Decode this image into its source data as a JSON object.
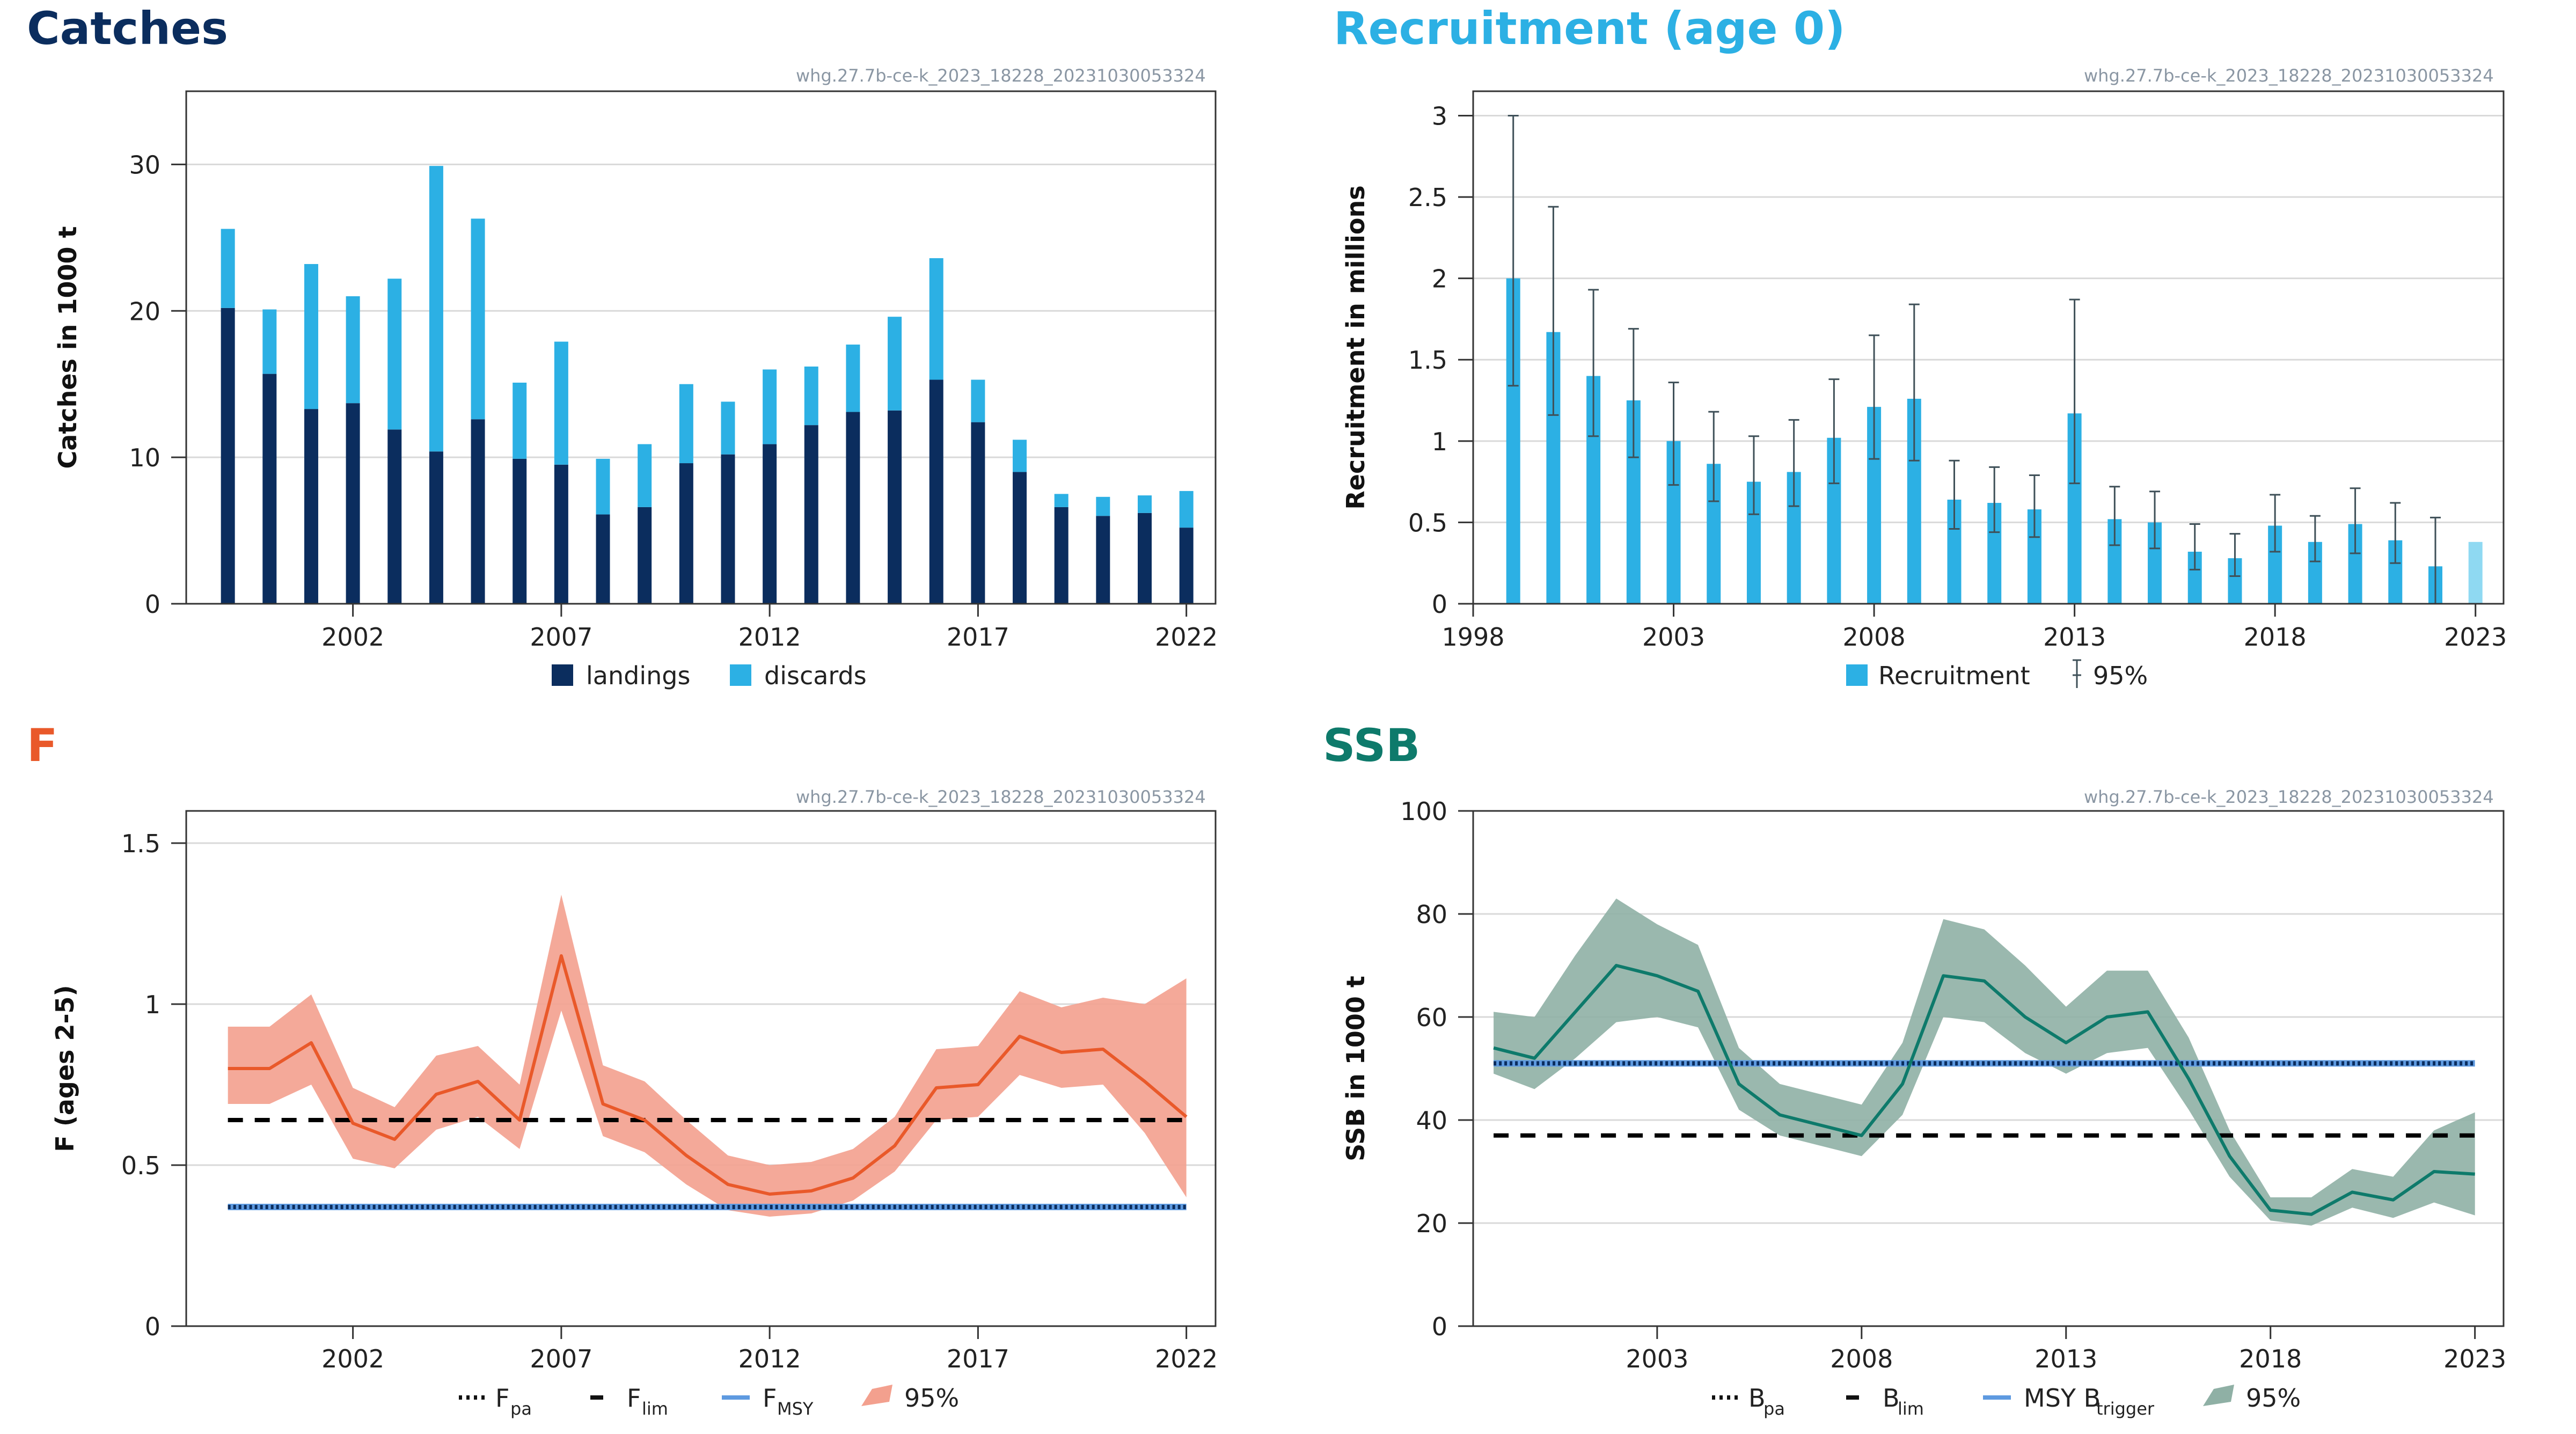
{
  "colors": {
    "landings": "#0b2d5e",
    "discards": "#2cb0e4",
    "recruitment": "#2cb0e4",
    "recruitment_last": "#8fd9f2",
    "error_bars": "#3f5058",
    "f_line": "#e9592a",
    "f_band": "#f3a08e",
    "ssb_line": "#0e7a6b",
    "ssb_band": "#8fb0a5",
    "reference_dashed": "#000000",
    "msy_line": "#5e9ae0",
    "msy_dots": "#0b2d5e",
    "grid": "#d9d9d9",
    "frame": "#333333",
    "catches_title": "#0b2d5e",
    "recruitment_title": "#2cb0e4",
    "f_title": "#e9592a",
    "ssb_title": "#0e7a6b",
    "id_text": "#8a96a3"
  },
  "panels": {
    "catches": {
      "title": "Catches",
      "id": "whg.27.7b-ce-k_2023_18228_20231030053324"
    },
    "recruitment": {
      "title": "Recruitment (age 0)",
      "id": "whg.27.7b-ce-k_2023_18228_20231030053324"
    },
    "f": {
      "title": "F",
      "id": "whg.27.7b-ce-k_2023_18228_20231030053324"
    },
    "ssb": {
      "title": "SSB",
      "id": "whg.27.7b-ce-k_2023_18228_20231030053324"
    }
  },
  "chart_data": [
    {
      "panel": "catches",
      "type": "bar",
      "stacked": true,
      "title": "Catches",
      "ylabel": "Catches in 1000 t",
      "xlabel": "",
      "ylim": [
        0,
        35
      ],
      "yticks": [
        0,
        10,
        20,
        30
      ],
      "xlim": [
        1998,
        2022.7
      ],
      "xticks": [
        2002,
        2007,
        2012,
        2017,
        2022
      ],
      "grid": true,
      "legend_position": "bottom",
      "x": [
        1999,
        2000,
        2001,
        2002,
        2003,
        2004,
        2005,
        2006,
        2007,
        2008,
        2009,
        2010,
        2011,
        2012,
        2013,
        2014,
        2015,
        2016,
        2017,
        2018,
        2019,
        2020,
        2021,
        2022
      ],
      "series": [
        {
          "name": "landings",
          "values": [
            20.2,
            15.7,
            13.3,
            13.7,
            11.9,
            10.4,
            12.6,
            9.9,
            9.5,
            6.1,
            6.6,
            9.6,
            10.2,
            10.9,
            12.2,
            13.1,
            13.2,
            15.3,
            12.4,
            9.0,
            6.6,
            6.0,
            6.2,
            5.2
          ]
        },
        {
          "name": "discards",
          "values": [
            5.4,
            4.4,
            9.9,
            7.3,
            10.3,
            19.5,
            13.7,
            5.2,
            8.4,
            3.8,
            4.3,
            5.4,
            3.6,
            5.1,
            4.0,
            4.6,
            6.4,
            8.3,
            2.9,
            2.2,
            0.9,
            1.3,
            1.2,
            2.5
          ]
        }
      ]
    },
    {
      "panel": "recruitment",
      "type": "bar",
      "title": "Recruitment (age 0)",
      "ylabel": "Recruitment in millions",
      "xlabel": "",
      "ylim": [
        0,
        3.15
      ],
      "yticks": [
        0,
        0.5,
        1,
        1.5,
        2,
        2.5,
        3
      ],
      "ytick_labels": [
        "0",
        "0.5",
        "1",
        "1.5",
        "2",
        "2.5",
        "3"
      ],
      "xlim": [
        1998,
        2023.7
      ],
      "xticks": [
        1998,
        2003,
        2008,
        2013,
        2018,
        2023
      ],
      "grid": true,
      "legend_position": "bottom",
      "legend": [
        "Recruitment",
        "95%"
      ],
      "x": [
        1999,
        2000,
        2001,
        2002,
        2003,
        2004,
        2005,
        2006,
        2007,
        2008,
        2009,
        2010,
        2011,
        2012,
        2013,
        2014,
        2015,
        2016,
        2017,
        2018,
        2019,
        2020,
        2021,
        2022,
        2023
      ],
      "values": [
        2.0,
        1.67,
        1.4,
        1.25,
        1.0,
        0.86,
        0.75,
        0.81,
        1.02,
        1.21,
        1.26,
        0.64,
        0.62,
        0.58,
        1.17,
        0.52,
        0.5,
        0.32,
        0.28,
        0.48,
        0.38,
        0.49,
        0.39,
        0.23,
        0.38
      ],
      "lower": [
        1.34,
        1.16,
        1.03,
        0.9,
        0.73,
        0.63,
        0.55,
        0.6,
        0.74,
        0.89,
        0.88,
        0.46,
        0.44,
        0.41,
        0.74,
        0.36,
        0.34,
        0.21,
        0.17,
        0.32,
        0.26,
        0.31,
        0.25,
        0.0,
        null
      ],
      "upper": [
        3.0,
        2.44,
        1.93,
        1.69,
        1.36,
        1.18,
        1.03,
        1.13,
        1.38,
        1.65,
        1.84,
        0.88,
        0.84,
        0.79,
        1.87,
        0.72,
        0.69,
        0.49,
        0.43,
        0.67,
        0.54,
        0.71,
        0.62,
        0.53,
        null
      ]
    },
    {
      "panel": "f",
      "type": "line",
      "title": "F",
      "ylabel": "F (ages 2-5)",
      "xlabel": "",
      "ylim": [
        0,
        1.6
      ],
      "yticks": [
        0,
        0.5,
        1,
        1.5
      ],
      "ytick_labels": [
        "0",
        "0.5",
        "1",
        "1.5"
      ],
      "xlim": [
        1998,
        2022.7
      ],
      "xticks": [
        2002,
        2007,
        2012,
        2017,
        2022
      ],
      "grid": true,
      "legend_position": "bottom",
      "x": [
        1999,
        2000,
        2001,
        2002,
        2003,
        2004,
        2005,
        2006,
        2007,
        2008,
        2009,
        2010,
        2011,
        2012,
        2013,
        2014,
        2015,
        2016,
        2017,
        2018,
        2019,
        2020,
        2021,
        2022
      ],
      "values": [
        0.8,
        0.8,
        0.88,
        0.63,
        0.58,
        0.72,
        0.76,
        0.64,
        1.15,
        0.69,
        0.64,
        0.53,
        0.44,
        0.41,
        0.42,
        0.46,
        0.56,
        0.74,
        0.75,
        0.9,
        0.85,
        0.86,
        0.76,
        0.65
      ],
      "lower": [
        0.69,
        0.69,
        0.75,
        0.52,
        0.49,
        0.61,
        0.65,
        0.55,
        0.98,
        0.59,
        0.54,
        0.44,
        0.36,
        0.34,
        0.35,
        0.39,
        0.48,
        0.64,
        0.65,
        0.78,
        0.74,
        0.75,
        0.6,
        0.4
      ],
      "upper": [
        0.93,
        0.93,
        1.03,
        0.74,
        0.68,
        0.84,
        0.87,
        0.75,
        1.34,
        0.81,
        0.76,
        0.64,
        0.53,
        0.5,
        0.51,
        0.55,
        0.65,
        0.86,
        0.87,
        1.04,
        0.99,
        1.02,
        1.0,
        1.08
      ],
      "reference_lines": [
        {
          "legend": "F",
          "sub": "pa",
          "value": 0.37,
          "style": "dotted"
        },
        {
          "legend": "F",
          "sub": "lim",
          "value": 0.64,
          "style": "dashed"
        },
        {
          "legend": "F",
          "sub": "MSY",
          "value": 0.37,
          "style": "solid"
        }
      ],
      "band_legend": "95%"
    },
    {
      "panel": "ssb",
      "type": "line",
      "title": "SSB",
      "ylabel": "SSB in 1000 t",
      "xlabel": "",
      "ylim": [
        0,
        100
      ],
      "yticks": [
        0,
        20,
        40,
        60,
        80,
        100
      ],
      "xlim": [
        1998.5,
        2023.7
      ],
      "xticks": [
        2003,
        2008,
        2013,
        2018,
        2023
      ],
      "grid": true,
      "legend_position": "bottom",
      "x": [
        1999,
        2000,
        2001,
        2002,
        2003,
        2004,
        2005,
        2006,
        2007,
        2008,
        2009,
        2010,
        2011,
        2012,
        2013,
        2014,
        2015,
        2016,
        2017,
        2018,
        2019,
        2020,
        2021,
        2022,
        2023
      ],
      "values": [
        54,
        52,
        61,
        70,
        68,
        65,
        47,
        41,
        39,
        37,
        47,
        68,
        67,
        60,
        55,
        60,
        61,
        48,
        33,
        22.5,
        21.7,
        26,
        24.5,
        30,
        29.5
      ],
      "lower": [
        49,
        46,
        52,
        59,
        60,
        58,
        42,
        37,
        35,
        33,
        41,
        60,
        59,
        53,
        49,
        53,
        54,
        42,
        29,
        20.5,
        19.5,
        23,
        21,
        24,
        21.5
      ],
      "upper": [
        61,
        60,
        72,
        83,
        78,
        74,
        54,
        47,
        45,
        43,
        55,
        79,
        77,
        70,
        62,
        69,
        69,
        56,
        38,
        25,
        25,
        30.5,
        29,
        38,
        41.5
      ],
      "reference_lines": [
        {
          "legend": "B",
          "sub": "pa",
          "value": 51,
          "style": "dotted"
        },
        {
          "legend": "B",
          "sub": "lim",
          "value": 37,
          "style": "dashed"
        },
        {
          "legend": "MSY B",
          "sub": "trigger",
          "value": 51,
          "style": "solid"
        }
      ],
      "band_legend": "95%"
    }
  ]
}
